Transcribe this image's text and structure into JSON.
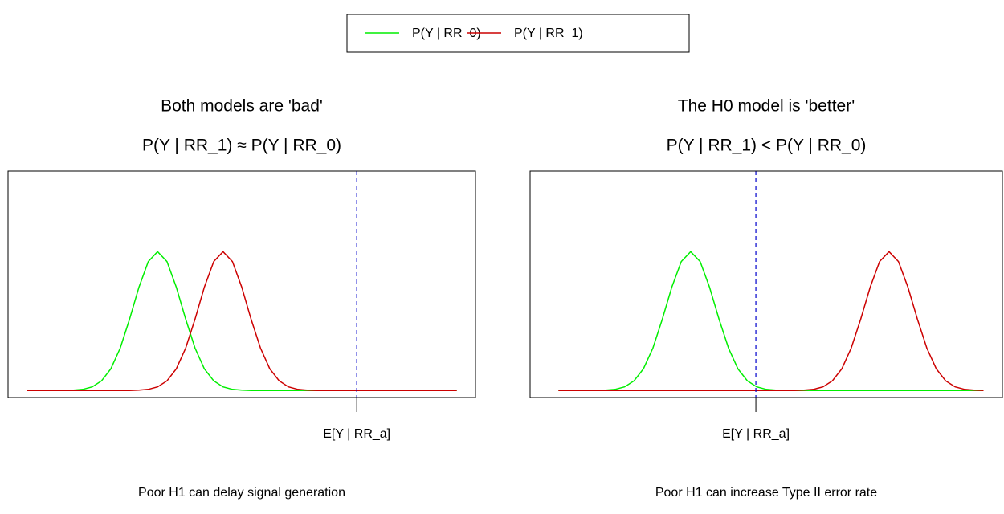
{
  "chart_data": [
    {
      "type": "line",
      "title": "Both models are 'bad'",
      "subtitle": "P(Y | RR_1) ≈ P(Y | RR_0)",
      "caption": "Poor H1 can delay signal generation",
      "x": [
        4,
        6,
        8,
        10,
        12,
        14,
        16,
        18,
        20,
        22,
        24,
        26,
        28,
        30,
        32,
        34,
        36,
        38,
        40,
        42,
        44,
        46,
        48,
        50,
        52,
        54,
        56,
        58,
        60,
        62,
        64,
        66,
        68,
        70,
        72,
        74,
        76,
        78,
        80,
        82,
        84,
        86,
        88,
        90,
        92,
        94,
        96
      ],
      "series": [
        {
          "name": "P(Y | RR_0)",
          "color": "#00ee00",
          "values": [
            0,
            0,
            0,
            0,
            0.001,
            0.003,
            0.009,
            0.027,
            0.07,
            0.157,
            0.306,
            0.514,
            0.744,
            0.929,
            1,
            0.929,
            0.744,
            0.514,
            0.306,
            0.157,
            0.07,
            0.027,
            0.009,
            0.003,
            0.001,
            0,
            0,
            0,
            0,
            0,
            0,
            0,
            0,
            0,
            0,
            0,
            0,
            0,
            0,
            0,
            0,
            0,
            0,
            0,
            0,
            0,
            0
          ]
        },
        {
          "name": "P(Y | RR_1)",
          "color": "#cc0000",
          "values": [
            0,
            0,
            0,
            0,
            0,
            0,
            0,
            0,
            0,
            0,
            0,
            0.001,
            0.003,
            0.009,
            0.027,
            0.07,
            0.157,
            0.306,
            0.514,
            0.744,
            0.929,
            1,
            0.929,
            0.744,
            0.514,
            0.306,
            0.157,
            0.07,
            0.027,
            0.009,
            0.003,
            0.001,
            0,
            0,
            0,
            0,
            0,
            0,
            0,
            0,
            0,
            0,
            0,
            0,
            0,
            0,
            0
          ]
        }
      ],
      "xlim": [
        0,
        100
      ],
      "ylim": [
        -0.05,
        1.58
      ],
      "xticks": [
        {
          "value": 74.6,
          "label": "E[Y | RR_a]"
        }
      ]
    },
    {
      "type": "line",
      "title": "The H0 model is 'better'",
      "subtitle": "P(Y | RR_1) < P(Y | RR_0)",
      "caption": "Poor H1 can increase Type II error rate",
      "x": [
        6,
        8,
        10,
        12,
        14,
        16,
        18,
        20,
        22,
        24,
        26,
        28,
        30,
        32,
        34,
        36,
        38,
        40,
        42,
        44,
        46,
        48,
        50,
        52,
        54,
        56,
        58,
        60,
        62,
        64,
        66,
        68,
        70,
        72,
        74,
        76,
        78,
        80,
        82,
        84,
        86,
        88,
        90,
        92,
        94,
        96
      ],
      "series": [
        {
          "name": "P(Y | RR_0)",
          "color": "#00ee00",
          "values": [
            0,
            0,
            0,
            0,
            0.001,
            0.003,
            0.009,
            0.027,
            0.07,
            0.157,
            0.306,
            0.514,
            0.744,
            0.929,
            1,
            0.929,
            0.744,
            0.514,
            0.306,
            0.157,
            0.07,
            0.027,
            0.009,
            0.003,
            0.001,
            0,
            0,
            0,
            0,
            0,
            0,
            0,
            0,
            0,
            0,
            0,
            0,
            0,
            0,
            0,
            0,
            0,
            0,
            0,
            0,
            0
          ]
        },
        {
          "name": "P(Y | RR_1)",
          "color": "#cc0000",
          "values": [
            0,
            0,
            0,
            0,
            0,
            0,
            0,
            0,
            0,
            0,
            0,
            0,
            0,
            0,
            0,
            0,
            0,
            0,
            0,
            0,
            0,
            0,
            0,
            0,
            0,
            0.001,
            0.003,
            0.009,
            0.027,
            0.07,
            0.157,
            0.306,
            0.514,
            0.744,
            0.929,
            1,
            0.929,
            0.744,
            0.514,
            0.306,
            0.157,
            0.07,
            0.027,
            0.009,
            0.003,
            0.001
          ]
        }
      ],
      "xlim": [
        0,
        100
      ],
      "ylim": [
        -0.05,
        1.58
      ],
      "xticks": [
        {
          "value": 47.8,
          "label": "E[Y | RR_a]"
        }
      ]
    }
  ],
  "vline_color": "#0000cc"
}
